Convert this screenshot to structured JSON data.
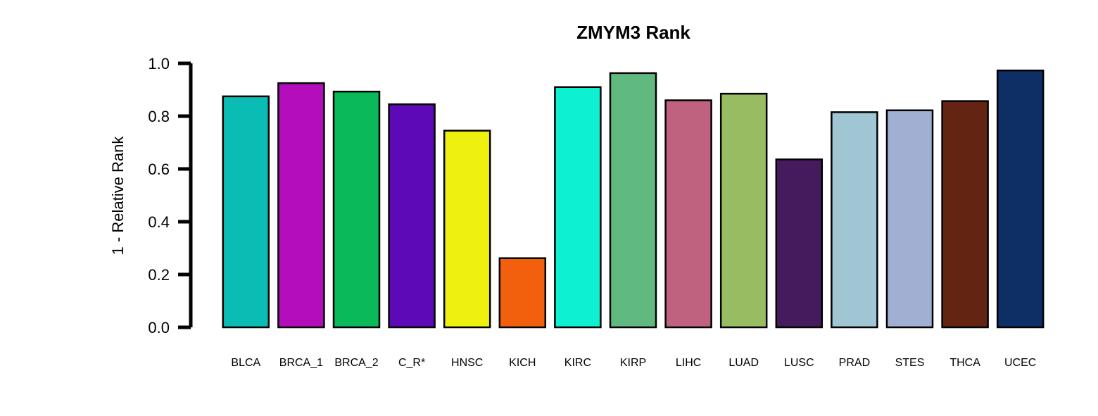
{
  "chart_data": {
    "type": "bar",
    "title": "ZMYM3 Rank",
    "xlabel": "",
    "ylabel": "1 - Relative Rank",
    "ylim": [
      0,
      1
    ],
    "yticks": [
      "0.0",
      "0.2",
      "0.4",
      "0.6",
      "0.8",
      "1.0"
    ],
    "grid": false,
    "legend": "none",
    "categories": [
      "BLCA",
      "BRCA_1",
      "BRCA_2",
      "C_R*",
      "HNSC",
      "KICH",
      "KIRC",
      "KIRP",
      "LIHC",
      "LUAD",
      "LUSC",
      "PRAD",
      "STES",
      "THCA",
      "UCEC"
    ],
    "values": [
      0.875,
      0.925,
      0.893,
      0.845,
      0.745,
      0.262,
      0.91,
      0.963,
      0.86,
      0.885,
      0.636,
      0.815,
      0.822,
      0.857,
      0.973
    ],
    "colors": [
      "#0BBCB4",
      "#B40DBC",
      "#09B95A",
      "#5D09B8",
      "#EEF00E",
      "#F2600E",
      "#0DF0D2",
      "#60BA80",
      "#BE6280",
      "#97BC62",
      "#461B5E",
      "#A0C6D4",
      "#A0AFD2",
      "#632512",
      "#0D2F66"
    ]
  }
}
